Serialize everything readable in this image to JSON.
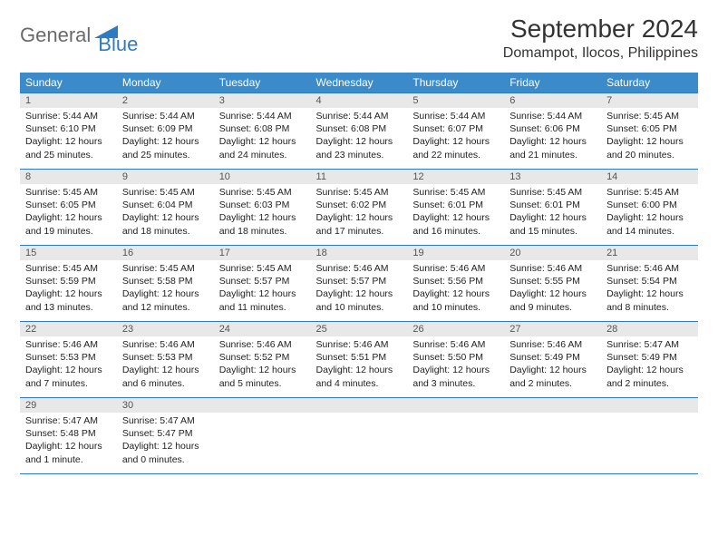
{
  "logo": {
    "general": "General",
    "blue": "Blue"
  },
  "title": "September 2024",
  "location": "Domampot, Ilocos, Philippines",
  "header_bg": "#3b8bca",
  "border_color": "#2f7bc2",
  "daynum_bg": "#e8e8e8",
  "weekdays": [
    "Sunday",
    "Monday",
    "Tuesday",
    "Wednesday",
    "Thursday",
    "Friday",
    "Saturday"
  ],
  "days": [
    {
      "n": 1,
      "sr": "5:44 AM",
      "ss": "6:10 PM",
      "dl": "12 hours and 25 minutes."
    },
    {
      "n": 2,
      "sr": "5:44 AM",
      "ss": "6:09 PM",
      "dl": "12 hours and 25 minutes."
    },
    {
      "n": 3,
      "sr": "5:44 AM",
      "ss": "6:08 PM",
      "dl": "12 hours and 24 minutes."
    },
    {
      "n": 4,
      "sr": "5:44 AM",
      "ss": "6:08 PM",
      "dl": "12 hours and 23 minutes."
    },
    {
      "n": 5,
      "sr": "5:44 AM",
      "ss": "6:07 PM",
      "dl": "12 hours and 22 minutes."
    },
    {
      "n": 6,
      "sr": "5:44 AM",
      "ss": "6:06 PM",
      "dl": "12 hours and 21 minutes."
    },
    {
      "n": 7,
      "sr": "5:45 AM",
      "ss": "6:05 PM",
      "dl": "12 hours and 20 minutes."
    },
    {
      "n": 8,
      "sr": "5:45 AM",
      "ss": "6:05 PM",
      "dl": "12 hours and 19 minutes."
    },
    {
      "n": 9,
      "sr": "5:45 AM",
      "ss": "6:04 PM",
      "dl": "12 hours and 18 minutes."
    },
    {
      "n": 10,
      "sr": "5:45 AM",
      "ss": "6:03 PM",
      "dl": "12 hours and 18 minutes."
    },
    {
      "n": 11,
      "sr": "5:45 AM",
      "ss": "6:02 PM",
      "dl": "12 hours and 17 minutes."
    },
    {
      "n": 12,
      "sr": "5:45 AM",
      "ss": "6:01 PM",
      "dl": "12 hours and 16 minutes."
    },
    {
      "n": 13,
      "sr": "5:45 AM",
      "ss": "6:01 PM",
      "dl": "12 hours and 15 minutes."
    },
    {
      "n": 14,
      "sr": "5:45 AM",
      "ss": "6:00 PM",
      "dl": "12 hours and 14 minutes."
    },
    {
      "n": 15,
      "sr": "5:45 AM",
      "ss": "5:59 PM",
      "dl": "12 hours and 13 minutes."
    },
    {
      "n": 16,
      "sr": "5:45 AM",
      "ss": "5:58 PM",
      "dl": "12 hours and 12 minutes."
    },
    {
      "n": 17,
      "sr": "5:45 AM",
      "ss": "5:57 PM",
      "dl": "12 hours and 11 minutes."
    },
    {
      "n": 18,
      "sr": "5:46 AM",
      "ss": "5:57 PM",
      "dl": "12 hours and 10 minutes."
    },
    {
      "n": 19,
      "sr": "5:46 AM",
      "ss": "5:56 PM",
      "dl": "12 hours and 10 minutes."
    },
    {
      "n": 20,
      "sr": "5:46 AM",
      "ss": "5:55 PM",
      "dl": "12 hours and 9 minutes."
    },
    {
      "n": 21,
      "sr": "5:46 AM",
      "ss": "5:54 PM",
      "dl": "12 hours and 8 minutes."
    },
    {
      "n": 22,
      "sr": "5:46 AM",
      "ss": "5:53 PM",
      "dl": "12 hours and 7 minutes."
    },
    {
      "n": 23,
      "sr": "5:46 AM",
      "ss": "5:53 PM",
      "dl": "12 hours and 6 minutes."
    },
    {
      "n": 24,
      "sr": "5:46 AM",
      "ss": "5:52 PM",
      "dl": "12 hours and 5 minutes."
    },
    {
      "n": 25,
      "sr": "5:46 AM",
      "ss": "5:51 PM",
      "dl": "12 hours and 4 minutes."
    },
    {
      "n": 26,
      "sr": "5:46 AM",
      "ss": "5:50 PM",
      "dl": "12 hours and 3 minutes."
    },
    {
      "n": 27,
      "sr": "5:46 AM",
      "ss": "5:49 PM",
      "dl": "12 hours and 2 minutes."
    },
    {
      "n": 28,
      "sr": "5:47 AM",
      "ss": "5:49 PM",
      "dl": "12 hours and 2 minutes."
    },
    {
      "n": 29,
      "sr": "5:47 AM",
      "ss": "5:48 PM",
      "dl": "12 hours and 1 minute."
    },
    {
      "n": 30,
      "sr": "5:47 AM",
      "ss": "5:47 PM",
      "dl": "12 hours and 0 minutes."
    }
  ],
  "labels": {
    "sunrise": "Sunrise:",
    "sunset": "Sunset:",
    "daylight": "Daylight:"
  }
}
